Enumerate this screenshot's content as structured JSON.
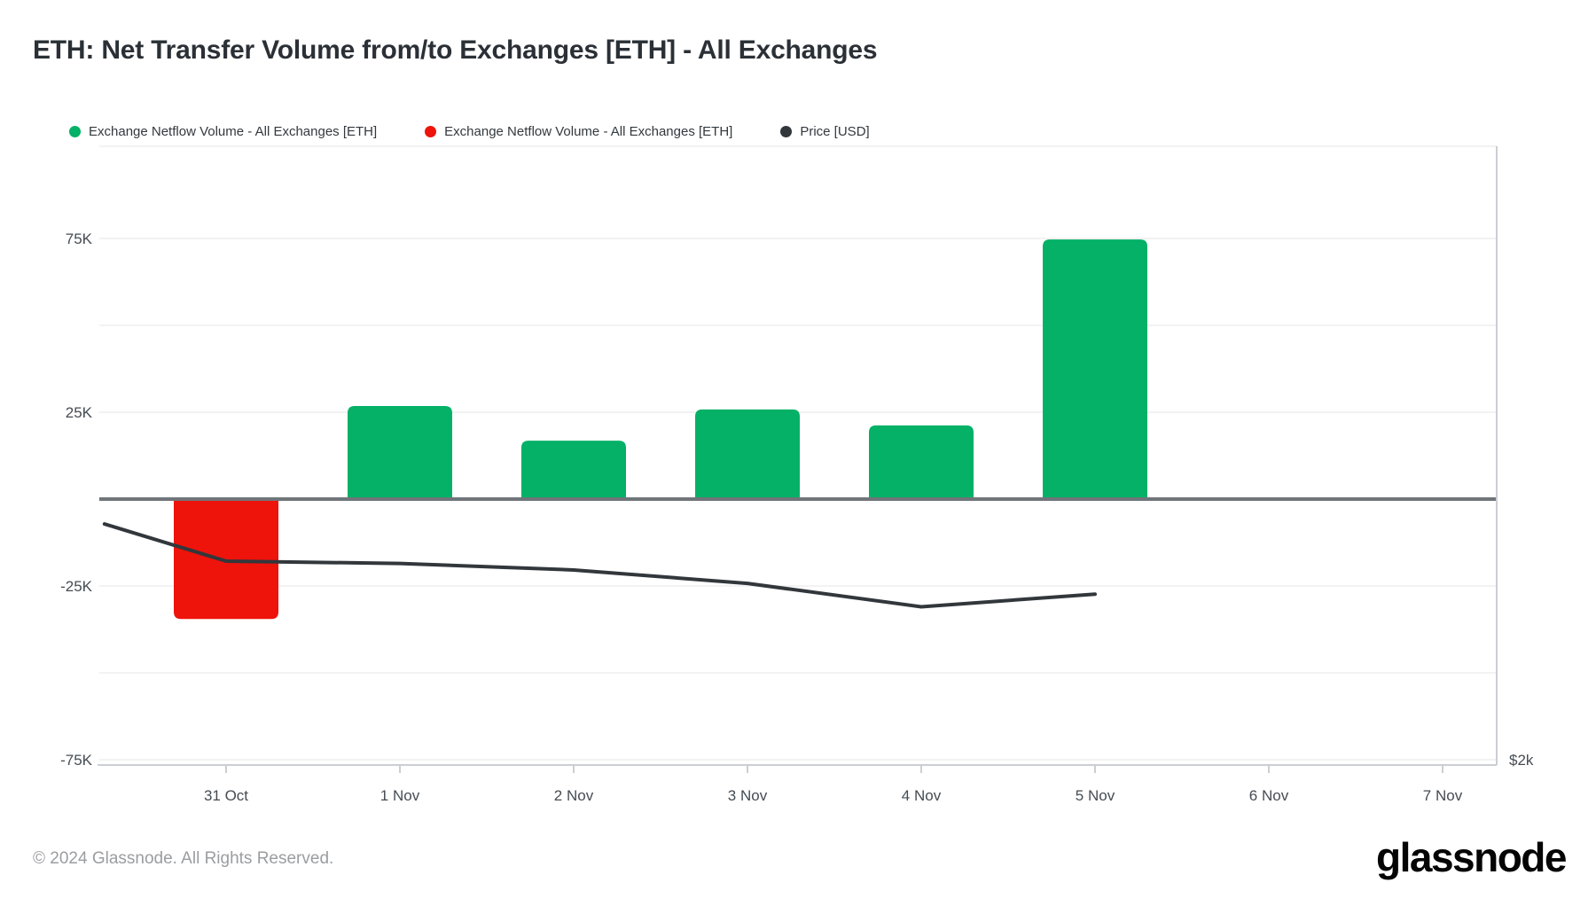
{
  "title": "ETH: Net Transfer Volume from/to Exchanges [ETH] - All Exchanges",
  "legend": [
    {
      "label": "Exchange Netflow Volume - All Exchanges [ETH]",
      "color": "#04B166"
    },
    {
      "label": "Exchange Netflow Volume - All Exchanges [ETH]",
      "color": "#EE130B"
    },
    {
      "label": "Price [USD]",
      "color": "#32373C"
    }
  ],
  "footer": {
    "copyright": "© 2024 Glassnode. All Rights Reserved.",
    "brand": "glassnode"
  },
  "colors": {
    "positive_bar": "#04B166",
    "negative_bar": "#EE130B",
    "price_line": "#32373C",
    "zero_line": "#70757A",
    "gridline": "#F2F2F2",
    "axis_border": "#CBCED2",
    "tick_text": "#454C53",
    "title_text": "#2A3036",
    "legend_text": "#33393F",
    "footer_text": "#9B9DA0"
  },
  "chart_data": {
    "type": "bar",
    "title": "ETH: Net Transfer Volume from/to Exchanges [ETH] - All Exchanges",
    "categories": [
      "31 Oct",
      "1 Nov",
      "2 Nov",
      "3 Nov",
      "4 Nov",
      "5 Nov",
      "6 Nov",
      "7 Nov"
    ],
    "series": [
      {
        "name": "Exchange Netflow Volume - All Exchanges [ETH]",
        "type": "column",
        "axis": "left",
        "unit": "ETH",
        "values": [
          -34500,
          26800,
          16800,
          25800,
          21200,
          74700,
          null,
          null
        ]
      },
      {
        "name": "Price [USD]",
        "type": "line",
        "axis": "right",
        "unit": "USD",
        "day_offset_unit": "days from 31 Oct",
        "points": [
          {
            "day_offset": -0.7,
            "usd": 2615
          },
          {
            "day_offset": 0,
            "usd": 2518
          },
          {
            "day_offset": 1,
            "usd": 2512
          },
          {
            "day_offset": 2,
            "usd": 2495
          },
          {
            "day_offset": 3,
            "usd": 2460
          },
          {
            "day_offset": 4,
            "usd": 2399
          },
          {
            "day_offset": 5,
            "usd": 2432
          }
        ]
      }
    ],
    "left_axis": {
      "tick_labels": [
        "75K",
        "25K",
        "-25K",
        "-75K"
      ],
      "tick_values": [
        75000,
        25000,
        -25000,
        -75000
      ],
      "gridline_values": [
        75000,
        50000,
        25000,
        -25000,
        -50000,
        -75000
      ],
      "grid_step": 25000,
      "range": [
        -76500,
        101500
      ]
    },
    "right_axis": {
      "visible_label": "$2k",
      "label_value": 2000
    },
    "x_axis": {
      "labels": [
        "31 Oct",
        "1 Nov",
        "2 Nov",
        "3 Nov",
        "4 Nov",
        "5 Nov",
        "6 Nov",
        "7 Nov"
      ]
    },
    "legend_position": "top",
    "grid": true
  }
}
